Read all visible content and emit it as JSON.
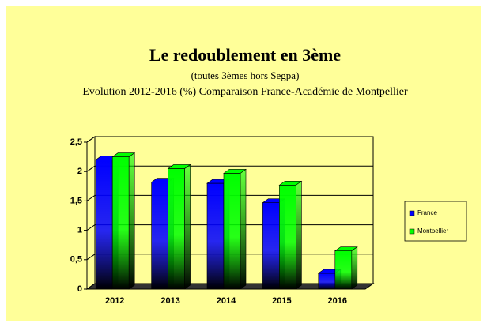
{
  "chart_data": {
    "type": "bar3d",
    "title": "Le redoublement en 3ème",
    "subtitle": "(toutes 3èmes hors Segpa)",
    "description": "Evolution 2012-2016 (%) Comparaison France-Académie de Montpellier",
    "categories": [
      "2012",
      "2013",
      "2014",
      "2015",
      "2016"
    ],
    "series": [
      {
        "name": "France",
        "color": "#0000ff",
        "values": [
          2.2,
          1.82,
          1.8,
          1.47,
          0.27
        ]
      },
      {
        "name": "Montpellier",
        "color": "#00ff00",
        "values": [
          2.25,
          2.05,
          1.97,
          1.77,
          0.65
        ]
      }
    ],
    "ylim": [
      0,
      2.5
    ],
    "yticks": [
      0,
      {
        "value": 0.5,
        "label": "0,5"
      },
      1,
      {
        "value": 1.5,
        "label": "1,5"
      },
      2,
      {
        "value": 2.5,
        "label": "2,5"
      }
    ],
    "grid": true,
    "legend": "right"
  }
}
